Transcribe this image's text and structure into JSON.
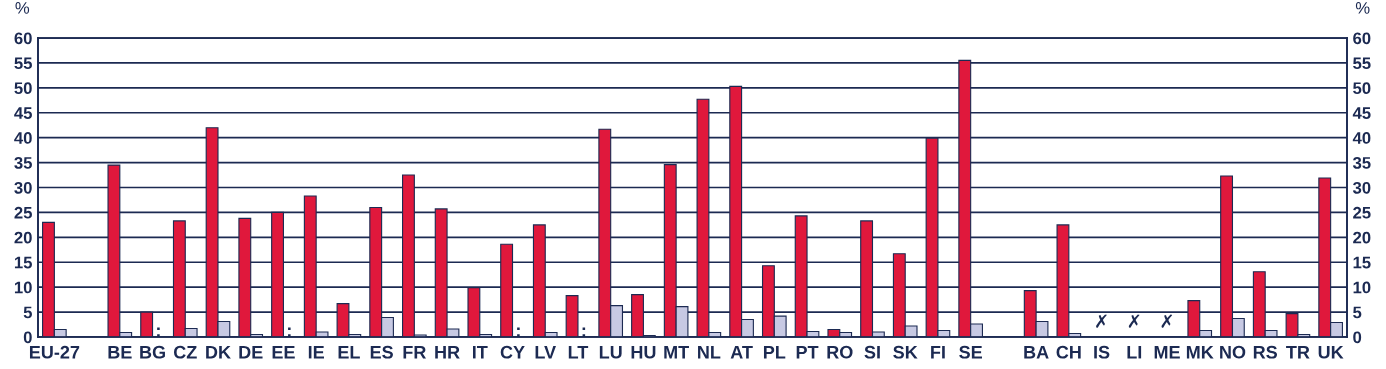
{
  "chart_data": {
    "type": "bar",
    "categories": [
      "EU-27",
      null,
      "BE",
      "BG",
      "CZ",
      "DK",
      "DE",
      "EE",
      "IE",
      "EL",
      "ES",
      "FR",
      "HR",
      "IT",
      "CY",
      "LV",
      "LT",
      "LU",
      "HU",
      "MT",
      "NL",
      "AT",
      "PL",
      "PT",
      "RO",
      "SI",
      "SK",
      "FI",
      "SE",
      null,
      "BA",
      "CH",
      "IS",
      "LI",
      "ME",
      "MK",
      "NO",
      "RS",
      "TR",
      "UK"
    ],
    "series": [
      {
        "color": "#e0183c",
        "values": [
          23,
          null,
          34.5,
          5,
          23.3,
          42,
          23.8,
          25,
          28.3,
          6.7,
          26,
          32.5,
          25.7,
          9.9,
          18.6,
          22.5,
          8.3,
          41.7,
          8.5,
          34.6,
          47.7,
          50.3,
          14.3,
          24.3,
          1.5,
          23.3,
          16.7,
          39.9,
          55.5,
          null,
          9.3,
          22.5,
          null,
          null,
          null,
          7.3,
          32.3,
          13.1,
          4.7,
          31.9
        ]
      },
      {
        "color": "#c7c9e3",
        "values": [
          1.5,
          null,
          0.9,
          null,
          1.7,
          3.1,
          0.5,
          null,
          1.0,
          0.5,
          3.9,
          0.4,
          1.6,
          0.5,
          null,
          0.9,
          null,
          6.3,
          0.3,
          6.1,
          0.9,
          3.5,
          4.2,
          1.1,
          0.9,
          1.0,
          2.2,
          1.3,
          2.6,
          null,
          3.1,
          0.7,
          null,
          null,
          null,
          1.3,
          3.7,
          1.3,
          0.5,
          2.9
        ]
      }
    ],
    "ylabel": "%",
    "y2label": "%",
    "ylim": [
      0,
      60
    ],
    "yticks": [
      0,
      5,
      10,
      15,
      20,
      25,
      30,
      35,
      40,
      45,
      50,
      55,
      60
    ],
    "y2lim": [
      0,
      60
    ],
    "y2ticks": [
      0,
      5,
      10,
      15,
      20,
      25,
      30,
      35,
      40,
      45,
      50,
      55,
      60
    ],
    "grid": "y",
    "annotations": [
      {
        "text": ":",
        "x": "BG",
        "y": 1
      },
      {
        "text": ":",
        "x": "EE",
        "y": 1
      },
      {
        "text": ":",
        "x": "CY",
        "y": 1
      },
      {
        "text": ":",
        "x": "LT",
        "y": 1
      },
      "✗",
      "✗",
      "✗"
    ]
  }
}
